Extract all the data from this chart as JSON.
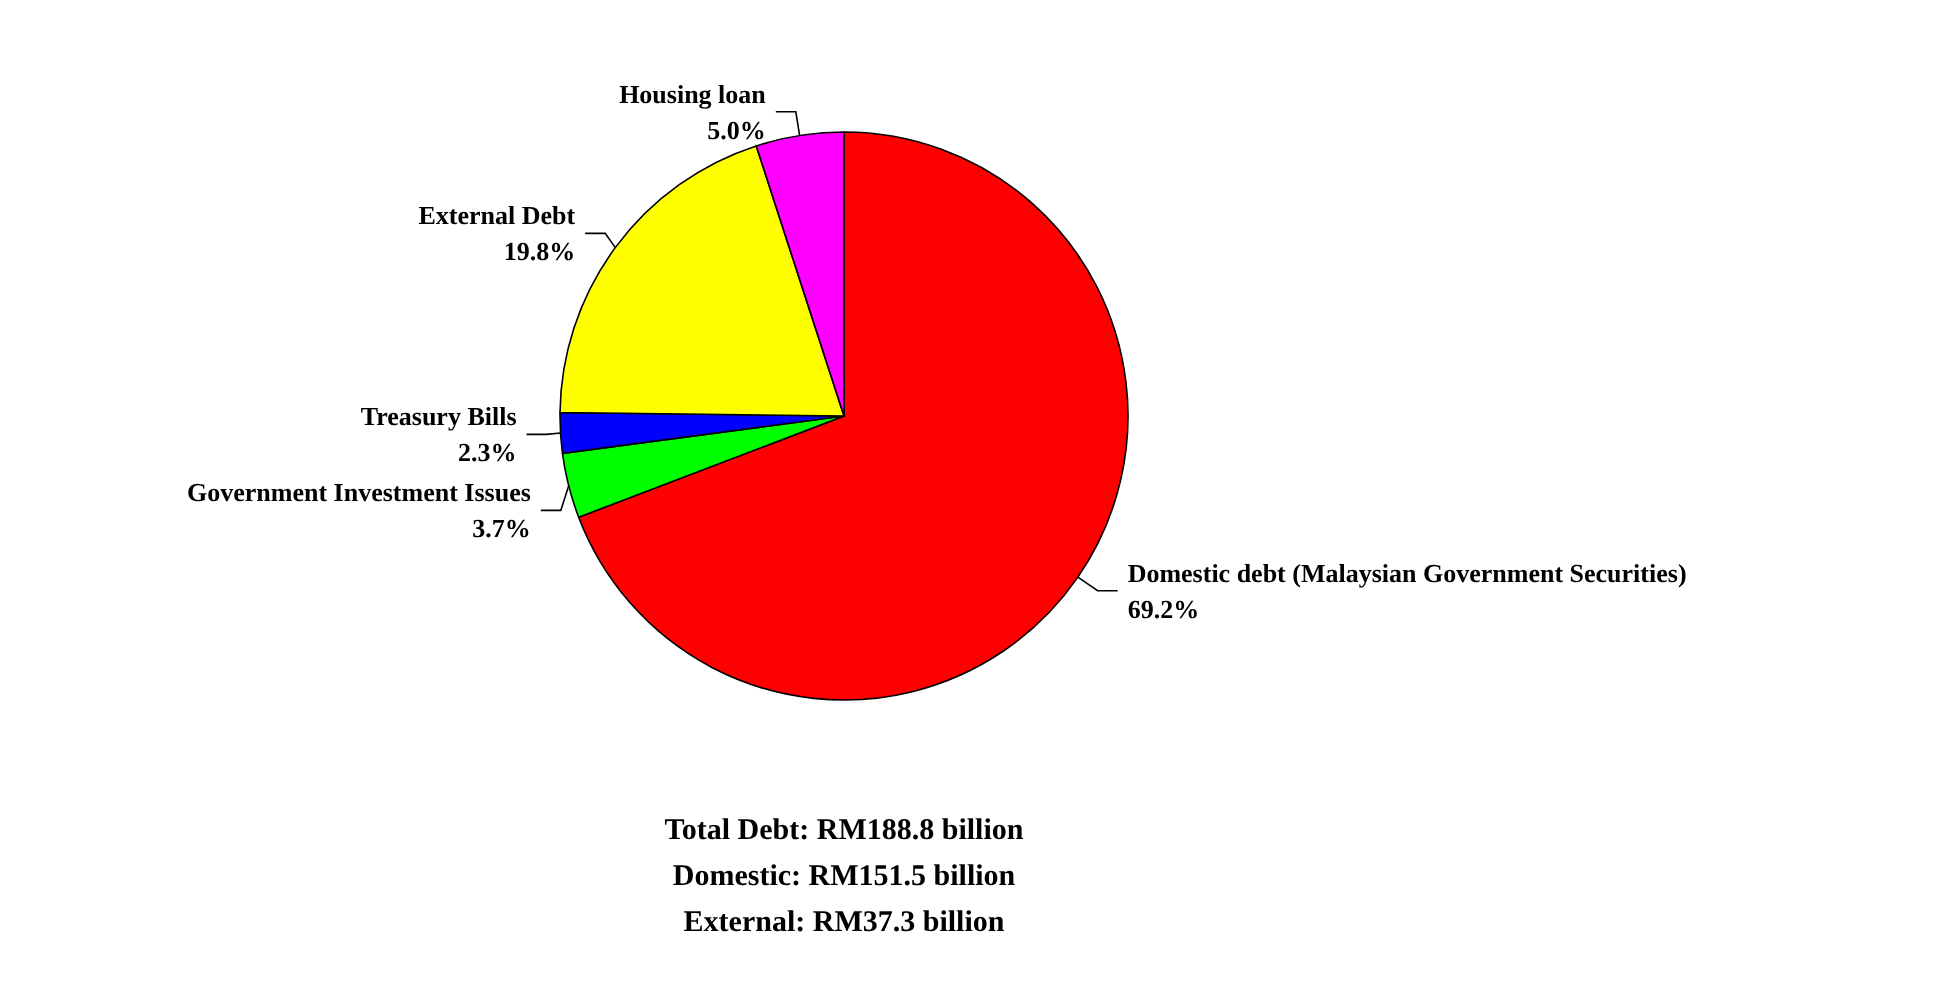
{
  "chart_data": {
    "type": "pie",
    "categories": [
      "Domestic debt (Malaysian Government Securities)",
      "Government Investment Issues",
      "Treasury Bills",
      "External Debt",
      "Housing loan"
    ],
    "values": [
      69.2,
      3.7,
      2.3,
      19.8,
      5.0
    ],
    "value_labels": [
      "69.2%",
      "3.7%",
      "2.3%",
      "19.8%",
      "5.0%"
    ],
    "colors": [
      "#ff0000",
      "#00ff00",
      "#0000ff",
      "#ffff00",
      "#ff00ff"
    ],
    "legend": false,
    "annotations": [
      "Total Debt: RM188.8 billion",
      "Domestic: RM151.5 billion",
      "External: RM37.3 billion"
    ]
  }
}
